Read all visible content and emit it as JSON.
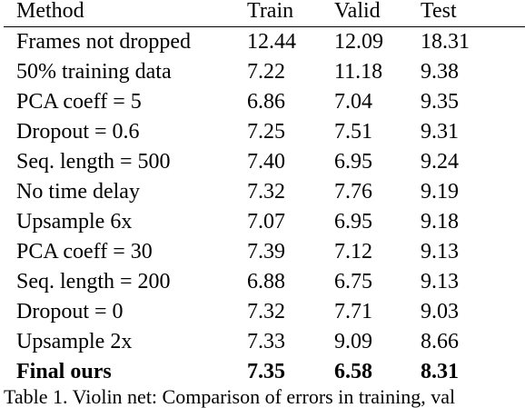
{
  "table": {
    "headers": [
      "Method",
      "Train",
      "Valid",
      "Test"
    ],
    "rows": [
      {
        "method": "Frames not dropped",
        "train": "12.44",
        "valid": "12.09",
        "test": "18.31"
      },
      {
        "method": "50% training data",
        "train": "7.22",
        "valid": "11.18",
        "test": "9.38"
      },
      {
        "method": "PCA coeff = 5",
        "train": "6.86",
        "valid": "7.04",
        "test": "9.35"
      },
      {
        "method": "Dropout = 0.6",
        "train": "7.25",
        "valid": "7.51",
        "test": "9.31"
      },
      {
        "method": "Seq. length = 500",
        "train": "7.40",
        "valid": "6.95",
        "test": "9.24"
      },
      {
        "method": "No time delay",
        "train": "7.32",
        "valid": "7.76",
        "test": "9.19"
      },
      {
        "method": "Upsample 6x",
        "train": "7.07",
        "valid": "6.95",
        "test": "9.18"
      },
      {
        "method": "PCA coeff = 30",
        "train": "7.39",
        "valid": "7.12",
        "test": "9.13"
      },
      {
        "method": "Seq. length = 200",
        "train": "6.88",
        "valid": "6.75",
        "test": "9.13"
      },
      {
        "method": "Dropout = 0",
        "train": "7.32",
        "valid": "7.71",
        "test": "9.03"
      },
      {
        "method": "Upsample 2x",
        "train": "7.33",
        "valid": "9.09",
        "test": "8.66"
      },
      {
        "method": "Final ours",
        "train": "7.35",
        "valid": "6.58",
        "test": "8.31"
      }
    ]
  },
  "caption": "Table 1. Violin net: Comparison of errors in training, val"
}
